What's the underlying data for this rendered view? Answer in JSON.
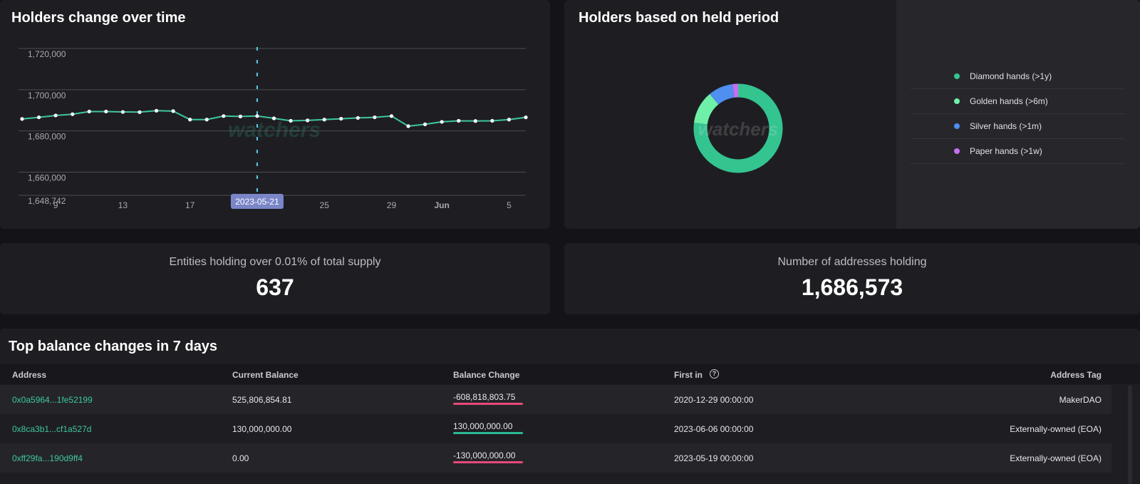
{
  "line_chart": {
    "title": "Holders change over time",
    "tooltip_label": "2023-05-21",
    "watermark": "watchers",
    "colors": {
      "line": "#3ec6a0",
      "marker_line": "#5fc8e8",
      "tooltip_bg": "#7a86c8"
    }
  },
  "chart_data": [
    {
      "type": "line",
      "ylim": [
        1648742,
        1720000
      ],
      "y_ticks": [
        "1,720,000",
        "1,700,000",
        "1,680,000",
        "1,660,000",
        "1,648,742"
      ],
      "y_tick_values": [
        1720000,
        1700000,
        1680000,
        1660000,
        1648742
      ],
      "x_tick_labels": [
        "9",
        "13",
        "17",
        "25",
        "29",
        "Jun",
        "5"
      ],
      "x_tick_dates": [
        "2023-05-09",
        "2023-05-13",
        "2023-05-17",
        "2023-05-25",
        "2023-05-29",
        "2023-06-01",
        "2023-06-05"
      ],
      "x": [
        "2023-05-07",
        "2023-05-08",
        "2023-05-09",
        "2023-05-10",
        "2023-05-11",
        "2023-05-12",
        "2023-05-13",
        "2023-05-14",
        "2023-05-15",
        "2023-05-16",
        "2023-05-17",
        "2023-05-18",
        "2023-05-19",
        "2023-05-20",
        "2023-05-21",
        "2023-05-22",
        "2023-05-23",
        "2023-05-24",
        "2023-05-25",
        "2023-05-26",
        "2023-05-27",
        "2023-05-28",
        "2023-05-29",
        "2023-05-30",
        "2023-05-31",
        "2023-06-01",
        "2023-06-02",
        "2023-06-03",
        "2023-06-04",
        "2023-06-05",
        "2023-06-06"
      ],
      "values": [
        1685800,
        1686600,
        1687500,
        1688100,
        1689400,
        1689400,
        1689200,
        1689100,
        1689800,
        1689600,
        1685500,
        1685500,
        1687200,
        1687000,
        1687200,
        1686100,
        1684900,
        1685100,
        1685500,
        1685900,
        1686300,
        1686600,
        1687200,
        1682300,
        1683200,
        1684400,
        1684900,
        1684800,
        1684900,
        1685500,
        1686573
      ],
      "grid": true,
      "marker_date": "2023-05-21"
    },
    {
      "type": "pie",
      "title": "Holders based on held period",
      "categories": [
        "Diamond hands (>1y)",
        "Golden hands (>6m)",
        "Silver hands (>1m)",
        "Paper hands (>1w)"
      ],
      "values": [
        77,
        12,
        9,
        2
      ],
      "colors": [
        "#34c490",
        "#6ef0a8",
        "#4f8ff0",
        "#c86ef0"
      ],
      "hole": true,
      "legend": "right"
    }
  ],
  "donut": {
    "title": "Holders based on held period",
    "watermark": "watchers",
    "legend": [
      {
        "label": "Diamond hands (>1y)",
        "color": "#34c490"
      },
      {
        "label": "Golden hands (>6m)",
        "color": "#6ef0a8"
      },
      {
        "label": "Silver hands (>1m)",
        "color": "#4f8ff0"
      },
      {
        "label": "Paper hands (>1w)",
        "color": "#c86ef0"
      }
    ]
  },
  "stats": {
    "entities": {
      "label": "Entities holding over 0.01% of total supply",
      "value": "637"
    },
    "addresses": {
      "label": "Number of addresses holding",
      "value": "1,686,573"
    }
  },
  "table": {
    "title": "Top balance changes in 7 days",
    "headers": {
      "address": "Address",
      "balance": "Current Balance",
      "change": "Balance Change",
      "first_in": "First in",
      "help_icon": "?",
      "tag": "Address Tag"
    },
    "rows": [
      {
        "address": "0x0a5964...1fe52199",
        "balance": "525,806,854.81",
        "change": "-608,818,803.75",
        "change_value": -608818803.75,
        "change_color": "#e84a7a",
        "first_in": "2020-12-29 00:00:00",
        "tag": "MakerDAO"
      },
      {
        "address": "0x8ca3b1...cf1a527d",
        "balance": "130,000,000.00",
        "change": "130,000,000.00",
        "change_value": 130000000,
        "change_color": "#2bb894",
        "first_in": "2023-06-06 00:00:00",
        "tag": "Externally-owned (EOA)"
      },
      {
        "address": "0xff29fa...190d9ff4",
        "balance": "0.00",
        "change": "-130,000,000.00",
        "change_value": -130000000,
        "change_color": "#e84a7a",
        "first_in": "2023-05-19 00:00:00",
        "tag": "Externally-owned (EOA)"
      }
    ]
  }
}
